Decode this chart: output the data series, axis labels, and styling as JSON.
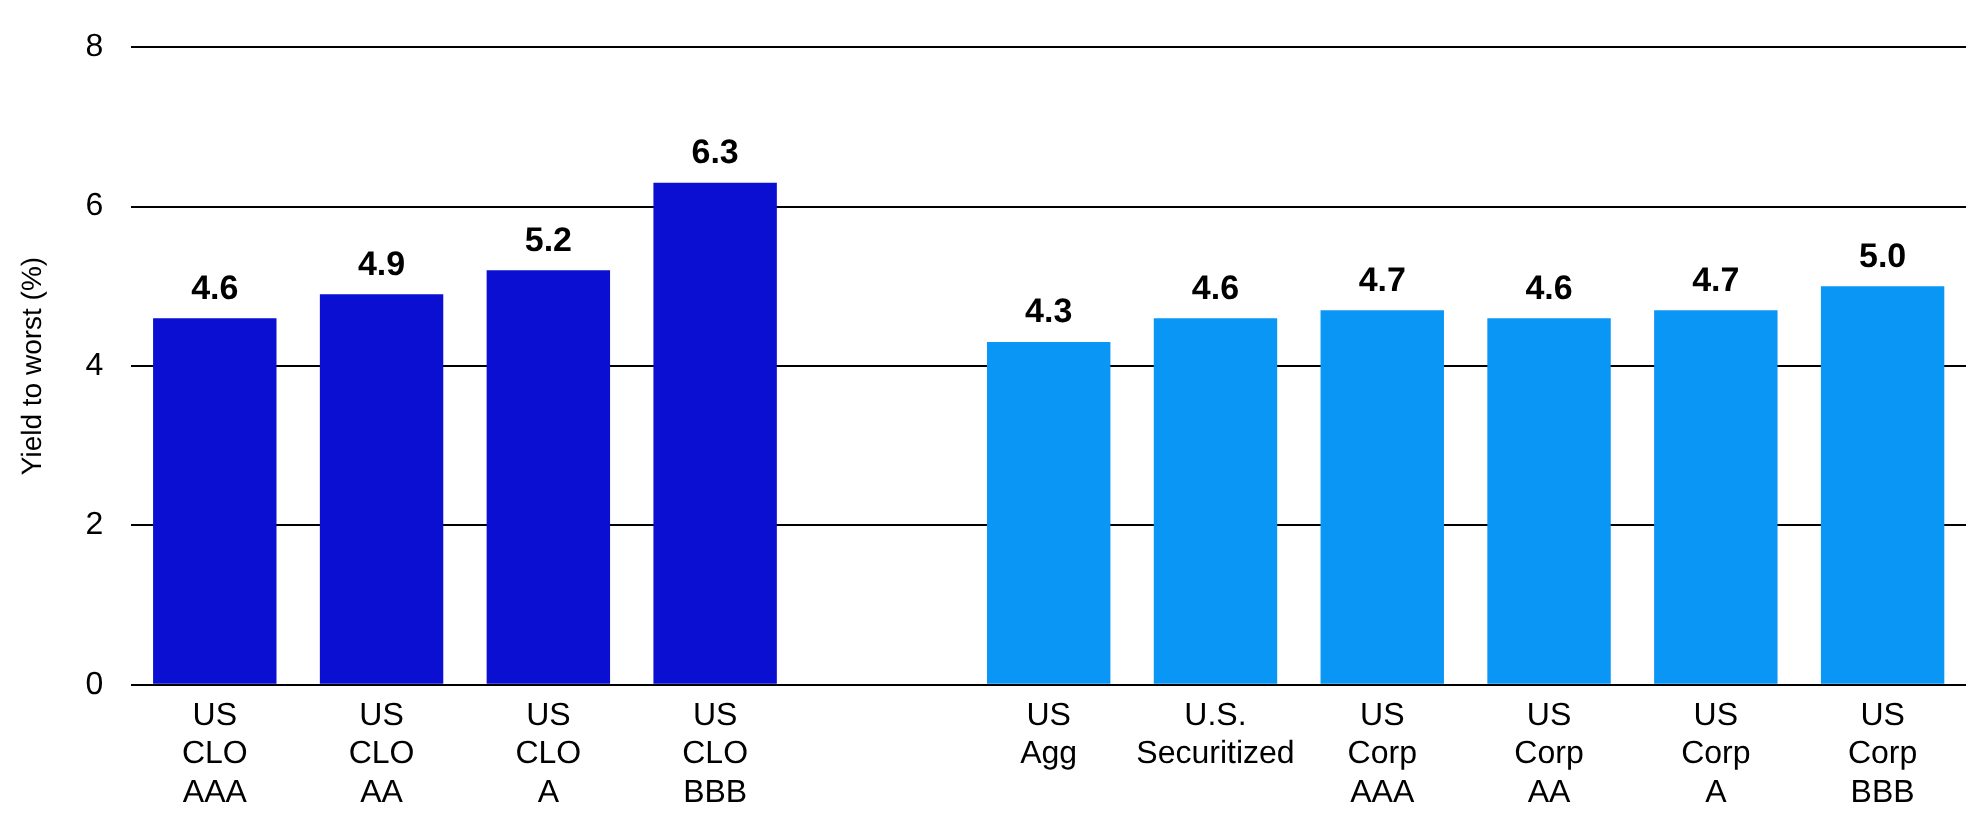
{
  "chart_data": {
    "type": "bar",
    "ylabel": "Yield to worst (%)",
    "categories": [
      "US\nCLO\nAAA",
      "US\nCLO\nAA",
      "US\nCLO\nA",
      "US\nCLO\nBBB",
      null,
      "US\nAgg",
      "U.S.\nSecuritized",
      "US\nCorp\nAAA",
      "US\nCorp\nAA",
      "US\nCorp\nA",
      "US\nCorp\nBBB"
    ],
    "values": [
      4.6,
      4.9,
      5.2,
      6.3,
      null,
      4.3,
      4.6,
      4.7,
      4.6,
      4.7,
      5.0
    ],
    "colors": [
      "#0a0fd2",
      "#0a0fd2",
      "#0a0fd2",
      "#0a0fd2",
      "#0a0fd2",
      "#0a96f5",
      "#0a96f5",
      "#0a96f5",
      "#0a96f5",
      "#0a96f5",
      "#0a96f5"
    ],
    "value_labels": [
      "4.6",
      "4.9",
      "5.2",
      "6.3",
      null,
      "4.3",
      "4.6",
      "4.7",
      "4.6",
      "4.7",
      "5.0"
    ],
    "ylim": [
      0,
      8
    ],
    "yticks": [
      0,
      2,
      4,
      6,
      8
    ],
    "grid": "y",
    "legend": false
  }
}
